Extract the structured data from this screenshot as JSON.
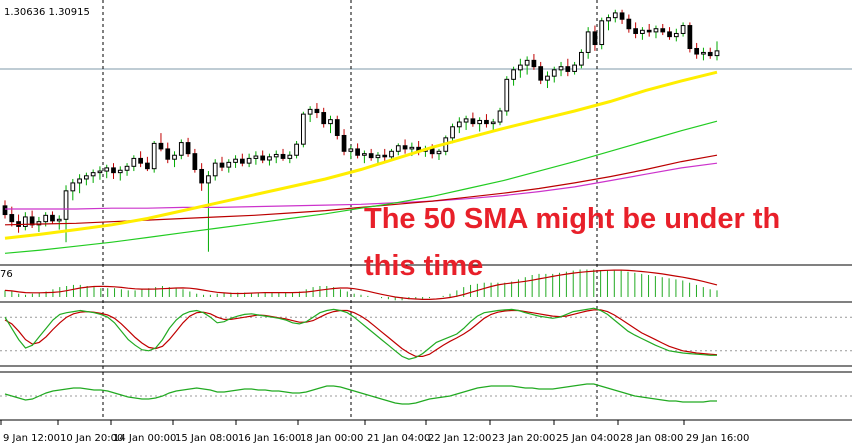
{
  "chart_data": {
    "type": "candlestick",
    "instrument_ohlc_text": "1.30636 1.30915",
    "x_tick_labels": [
      "9 Jan 12:00",
      "10 Jan 20:00",
      "14 Jan 00:00",
      "15 Jan 08:00",
      "16 Jan 16:00",
      "18 Jan 00:00",
      "21 Jan 04:00",
      "22 Jan 12:00",
      "23 Jan 20:00",
      "25 Jan 04:00",
      "28 Jan 08:00",
      "29 Jan 16:00"
    ],
    "annotation_lines": [
      "The 50 SMA might be under th",
      "this time"
    ],
    "indicator_label": "76",
    "colors": {
      "bull": "#00aa00",
      "bear": "#c00000",
      "sma50": "#ffee00",
      "sma100": "#22cc22",
      "sma200": "#bb0000",
      "sma_magenta": "#cc33cc",
      "annotation": "#e8202a",
      "grid": "#000000"
    },
    "candles": [
      [
        1.2886,
        1.2893,
        1.287,
        1.2875
      ],
      [
        1.2875,
        1.2885,
        1.286,
        1.2866
      ],
      [
        1.2866,
        1.2875,
        1.2852,
        1.286
      ],
      [
        1.286,
        1.2878,
        1.2855,
        1.2872
      ],
      [
        1.2872,
        1.288,
        1.2858,
        1.2862
      ],
      [
        1.2862,
        1.2872,
        1.2853,
        1.2866
      ],
      [
        1.2866,
        1.2878,
        1.286,
        1.2874
      ],
      [
        1.2874,
        1.2879,
        1.2863,
        1.2867
      ],
      [
        1.2867,
        1.2874,
        1.2856,
        1.2869
      ],
      [
        1.2869,
        1.2912,
        1.284,
        1.2905
      ],
      [
        1.2905,
        1.292,
        1.2893,
        1.2915
      ],
      [
        1.2915,
        1.2926,
        1.2902,
        1.292
      ],
      [
        1.292,
        1.2928,
        1.2912,
        1.2924
      ],
      [
        1.2924,
        1.2932,
        1.2915,
        1.2928
      ],
      [
        1.2928,
        1.2936,
        1.2919,
        1.293
      ],
      [
        1.293,
        1.2938,
        1.2921,
        1.2934
      ],
      [
        1.2934,
        1.294,
        1.292,
        1.2928
      ],
      [
        1.2928,
        1.2936,
        1.2918,
        1.2931
      ],
      [
        1.2931,
        1.294,
        1.2924,
        1.2936
      ],
      [
        1.2936,
        1.295,
        1.293,
        1.2946
      ],
      [
        1.2946,
        1.2955,
        1.2935,
        1.294
      ],
      [
        1.294,
        1.2948,
        1.293,
        1.2933
      ],
      [
        1.2933,
        1.2968,
        1.2928,
        1.2965
      ],
      [
        1.2965,
        1.2978,
        1.2955,
        1.2958
      ],
      [
        1.2958,
        1.2966,
        1.294,
        1.2945
      ],
      [
        1.2945,
        1.2955,
        1.2935,
        1.295
      ],
      [
        1.295,
        1.297,
        1.2945,
        1.2966
      ],
      [
        1.2966,
        1.2972,
        1.2948,
        1.2952
      ],
      [
        1.2952,
        1.2958,
        1.2928,
        1.2932
      ],
      [
        1.2932,
        1.294,
        1.2905,
        1.2915
      ],
      [
        1.2915,
        1.293,
        1.2828,
        1.2924
      ],
      [
        1.2924,
        1.2945,
        1.2918,
        1.294
      ],
      [
        1.294,
        1.2948,
        1.293,
        1.2935
      ],
      [
        1.2935,
        1.2945,
        1.2928,
        1.2941
      ],
      [
        1.2941,
        1.295,
        1.2934,
        1.2945
      ],
      [
        1.2945,
        1.2952,
        1.2936,
        1.294
      ],
      [
        1.294,
        1.2952,
        1.2935,
        1.2946
      ],
      [
        1.2946,
        1.2955,
        1.2938,
        1.2949
      ],
      [
        1.2949,
        1.2956,
        1.294,
        1.2944
      ],
      [
        1.2944,
        1.2952,
        1.2937,
        1.2948
      ],
      [
        1.2948,
        1.2956,
        1.294,
        1.2951
      ],
      [
        1.2951,
        1.2958,
        1.2943,
        1.2946
      ],
      [
        1.2946,
        1.2955,
        1.294,
        1.295
      ],
      [
        1.295,
        1.2968,
        1.2946,
        1.2964
      ],
      [
        1.2964,
        1.3005,
        1.296,
        1.3002
      ],
      [
        1.3002,
        1.3012,
        1.2992,
        1.3008
      ],
      [
        1.3008,
        1.3016,
        1.2997,
        1.3004
      ],
      [
        1.3004,
        1.301,
        1.2985,
        1.299
      ],
      [
        1.299,
        1.3,
        1.2978,
        1.2995
      ],
      [
        1.2995,
        1.3,
        1.297,
        1.2975
      ],
      [
        1.2975,
        1.2983,
        1.295,
        1.2955
      ],
      [
        1.2955,
        1.2962,
        1.2945,
        1.2958
      ],
      [
        1.2958,
        1.2965,
        1.2946,
        1.295
      ],
      [
        1.295,
        1.2956,
        1.294,
        1.2952
      ],
      [
        1.2952,
        1.2958,
        1.2943,
        1.2947
      ],
      [
        1.2947,
        1.2954,
        1.294,
        1.295
      ],
      [
        1.295,
        1.2958,
        1.2941,
        1.2948
      ],
      [
        1.2948,
        1.2958,
        1.2944,
        1.2955
      ],
      [
        1.2955,
        1.2965,
        1.295,
        1.2962
      ],
      [
        1.2962,
        1.297,
        1.2952,
        1.2958
      ],
      [
        1.2958,
        1.2966,
        1.2949,
        1.296
      ],
      [
        1.296,
        1.2968,
        1.295,
        1.2955
      ],
      [
        1.2955,
        1.2962,
        1.2948,
        1.2958
      ],
      [
        1.2958,
        1.2964,
        1.2946,
        1.2952
      ],
      [
        1.2952,
        1.2958,
        1.2944,
        1.2955
      ],
      [
        1.2955,
        1.2975,
        1.295,
        1.2972
      ],
      [
        1.2972,
        1.299,
        1.2965,
        1.2986
      ],
      [
        1.2986,
        1.2998,
        1.2978,
        1.2992
      ],
      [
        1.2992,
        1.3,
        1.2982,
        1.2996
      ],
      [
        1.2996,
        1.3004,
        1.2986,
        1.299
      ],
      [
        1.299,
        1.2998,
        1.298,
        1.2994
      ],
      [
        1.2994,
        1.3002,
        1.2985,
        1.299
      ],
      [
        1.299,
        1.2996,
        1.2982,
        1.2992
      ],
      [
        1.2992,
        1.301,
        1.2988,
        1.3006
      ],
      [
        1.3006,
        1.305,
        1.3,
        1.3046
      ],
      [
        1.3046,
        1.3062,
        1.3038,
        1.3058
      ],
      [
        1.3058,
        1.3072,
        1.3048,
        1.3064
      ],
      [
        1.3064,
        1.3075,
        1.3052,
        1.307
      ],
      [
        1.307,
        1.3078,
        1.3058,
        1.3062
      ],
      [
        1.3062,
        1.3068,
        1.304,
        1.3045
      ],
      [
        1.3045,
        1.3056,
        1.3035,
        1.305
      ],
      [
        1.305,
        1.3062,
        1.3042,
        1.3058
      ],
      [
        1.3058,
        1.3068,
        1.305,
        1.3062
      ],
      [
        1.3062,
        1.3072,
        1.305,
        1.3056
      ],
      [
        1.3056,
        1.3068,
        1.3052,
        1.3064
      ],
      [
        1.3064,
        1.3084,
        1.306,
        1.308
      ],
      [
        1.308,
        1.3112,
        1.3072,
        1.3106
      ],
      [
        1.3106,
        1.3114,
        1.3082,
        1.309
      ],
      [
        1.309,
        1.3124,
        1.3084,
        1.312
      ],
      [
        1.312,
        1.3128,
        1.3108,
        1.3124
      ],
      [
        1.3124,
        1.3134,
        1.3118,
        1.313
      ],
      [
        1.313,
        1.3134,
        1.3116,
        1.3122
      ],
      [
        1.3122,
        1.3128,
        1.3105,
        1.311
      ],
      [
        1.311,
        1.3118,
        1.3098,
        1.3104
      ],
      [
        1.3104,
        1.3112,
        1.3096,
        1.3108
      ],
      [
        1.3108,
        1.3116,
        1.31,
        1.3106
      ],
      [
        1.3106,
        1.3114,
        1.3098,
        1.311
      ],
      [
        1.311,
        1.3116,
        1.3102,
        1.3106
      ],
      [
        1.3106,
        1.3112,
        1.3096,
        1.31
      ],
      [
        1.31,
        1.311,
        1.3094,
        1.3104
      ],
      [
        1.3104,
        1.3118,
        1.31,
        1.3114
      ],
      [
        1.3114,
        1.3118,
        1.308,
        1.3085
      ],
      [
        1.3085,
        1.3092,
        1.3072,
        1.3078
      ],
      [
        1.3078,
        1.3086,
        1.307,
        1.308
      ],
      [
        1.308,
        1.3086,
        1.3072,
        1.3076
      ],
      [
        1.3076,
        1.3094,
        1.307,
        1.3082
      ]
    ],
    "sma50": [
      1.2845,
      1.285,
      1.2856,
      1.2862,
      1.287,
      1.288,
      1.289,
      1.29,
      1.291,
      1.292,
      1.2932,
      1.2946,
      1.296,
      1.2972,
      1.2984,
      1.2995,
      1.3006,
      1.3018,
      1.3032,
      1.3044,
      1.3055
    ],
    "sma100": [
      1.2826,
      1.283,
      1.2835,
      1.284,
      1.2846,
      1.2852,
      1.2858,
      1.2864,
      1.287,
      1.2876,
      1.2883,
      1.289,
      1.2898,
      1.2908,
      1.2918,
      1.293,
      1.2942,
      1.2955,
      1.2968,
      1.2981,
      1.2993
    ],
    "sma200": [
      1.2862,
      1.2863,
      1.2864,
      1.2866,
      1.2868,
      1.287,
      1.2872,
      1.2874,
      1.2877,
      1.288,
      1.2884,
      1.2888,
      1.2892,
      1.2897,
      1.2902,
      1.2908,
      1.2915,
      1.2923,
      1.2932,
      1.2942,
      1.295
    ],
    "sma_magenta": [
      1.2882,
      1.2882,
      1.2882,
      1.2883,
      1.2883,
      1.2884,
      1.2884,
      1.2885,
      1.2886,
      1.2887,
      1.2888,
      1.289,
      1.2892,
      1.2895,
      1.2899,
      1.2904,
      1.291,
      1.2918,
      1.2926,
      1.2934,
      1.294
    ],
    "macd_hist": [
      0.6,
      0.5,
      0.3,
      0.2,
      0.3,
      0.4,
      0.5,
      0.7,
      0.9,
      1.0,
      1.1,
      1.1,
      1.0,
      0.9,
      0.8,
      0.8,
      0.8,
      0.7,
      0.6,
      0.6,
      0.7,
      0.8,
      0.9,
      1.0,
      0.9,
      0.8,
      0.7,
      0.5,
      0.3,
      0.2,
      0.2,
      0.3,
      0.4,
      0.4,
      0.4,
      0.4,
      0.4,
      0.4,
      0.4,
      0.4,
      0.4,
      0.4,
      0.4,
      0.5,
      0.7,
      0.9,
      1.0,
      1.0,
      0.9,
      0.7,
      0.5,
      0.3,
      0.2,
      0.1,
      0.0,
      -0.1,
      -0.2,
      -0.3,
      -0.3,
      -0.2,
      -0.2,
      -0.2,
      -0.1,
      0.0,
      0.1,
      0.3,
      0.6,
      0.9,
      1.1,
      1.2,
      1.3,
      1.3,
      1.3,
      1.3,
      1.4,
      1.6,
      1.8,
      2.0,
      2.1,
      2.1,
      2.1,
      2.2,
      2.3,
      2.4,
      2.5,
      2.5,
      2.5,
      2.4,
      2.4,
      2.4,
      2.4,
      2.3,
      2.2,
      2.1,
      2.0,
      1.9,
      1.8,
      1.7,
      1.6,
      1.5,
      1.3,
      1.1,
      0.9,
      0.7,
      0.6
    ],
    "stoch_main": [
      80,
      60,
      40,
      25,
      30,
      45,
      60,
      75,
      85,
      88,
      90,
      92,
      90,
      88,
      85,
      80,
      70,
      55,
      40,
      30,
      22,
      20,
      25,
      40,
      60,
      75,
      85,
      90,
      92,
      88,
      80,
      70,
      72,
      78,
      82,
      85,
      86,
      84,
      82,
      80,
      78,
      75,
      70,
      68,
      72,
      80,
      88,
      92,
      94,
      92,
      88,
      80,
      70,
      60,
      50,
      40,
      30,
      20,
      10,
      5,
      8,
      15,
      25,
      35,
      40,
      45,
      50,
      60,
      72,
      82,
      88,
      90,
      92,
      93,
      94,
      92,
      88,
      85,
      82,
      80,
      78,
      80,
      85,
      90,
      92,
      94,
      96,
      92,
      85,
      75,
      65,
      55,
      48,
      42,
      36,
      30,
      25,
      20,
      18,
      16,
      15,
      14,
      13,
      12,
      12
    ],
    "stoch_signal": [
      75,
      68,
      55,
      40,
      32,
      35,
      45,
      58,
      70,
      80,
      86,
      89,
      90,
      89,
      87,
      84,
      78,
      68,
      56,
      44,
      34,
      26,
      24,
      28,
      40,
      55,
      70,
      82,
      88,
      89,
      86,
      80,
      76,
      76,
      78,
      80,
      82,
      84,
      83,
      81,
      79,
      77,
      74,
      71,
      71,
      74,
      80,
      86,
      90,
      92,
      92,
      88,
      82,
      74,
      64,
      54,
      44,
      34,
      24,
      16,
      10,
      10,
      14,
      22,
      30,
      37,
      43,
      50,
      58,
      68,
      78,
      85,
      89,
      91,
      92,
      92,
      90,
      88,
      86,
      84,
      82,
      81,
      82,
      85,
      88,
      91,
      93,
      93,
      90,
      84,
      76,
      68,
      60,
      52,
      46,
      40,
      34,
      28,
      24,
      20,
      18,
      16,
      15,
      14,
      13
    ],
    "rsi": [
      52,
      50,
      48,
      46,
      47,
      50,
      53,
      55,
      56,
      57,
      58,
      58,
      57,
      56,
      56,
      55,
      53,
      51,
      49,
      48,
      47,
      47,
      48,
      50,
      53,
      55,
      56,
      57,
      58,
      57,
      56,
      54,
      54,
      55,
      56,
      57,
      57,
      56,
      56,
      55,
      55,
      54,
      53,
      53,
      54,
      56,
      58,
      60,
      60,
      59,
      57,
      55,
      53,
      51,
      49,
      47,
      45,
      43,
      42,
      42,
      43,
      45,
      47,
      48,
      49,
      50,
      52,
      54,
      56,
      58,
      59,
      60,
      60,
      60,
      60,
      59,
      58,
      58,
      57,
      57,
      57,
      58,
      59,
      60,
      61,
      62,
      62,
      60,
      58,
      56,
      54,
      52,
      50,
      49,
      48,
      47,
      46,
      45,
      45,
      44,
      44,
      44,
      44,
      45,
      45
    ]
  }
}
